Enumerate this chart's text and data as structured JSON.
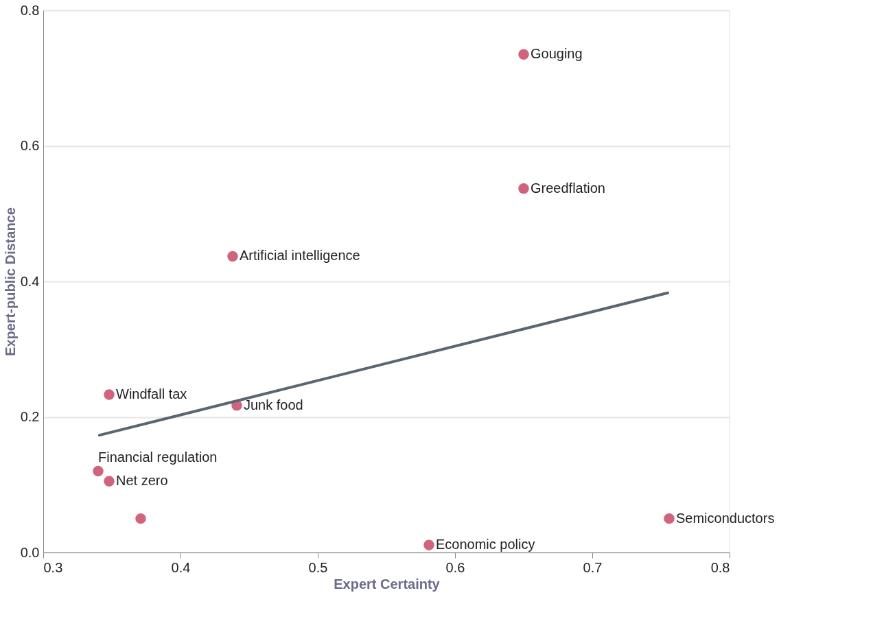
{
  "chart_data": {
    "type": "scatter",
    "xlabel": "Expert Certainty",
    "ylabel": "Expert-public Distance",
    "xlim": [
      0.3,
      0.8
    ],
    "xticks": [
      0.3,
      0.4,
      0.5,
      0.6,
      0.7,
      0.8
    ],
    "ylim": [
      0,
      0.8
    ],
    "yticks": [
      {
        "value": 0,
        "label": "0.0"
      },
      0.2,
      0.4,
      0.6,
      0.8
    ],
    "grid": "y",
    "series": [
      {
        "marker": "circle",
        "color": "#d0647c",
        "x": [
          0.65,
          0.65,
          0.438,
          0.348,
          0.441,
          0.34,
          0.348,
          0.371,
          0.581,
          0.756
        ],
        "values": [
          0.735,
          0.537,
          0.437,
          0.233,
          0.217,
          0.12,
          0.105,
          0.05,
          0.011,
          0.05
        ]
      },
      {
        "type": "line",
        "color": "#5a6670",
        "x": [
          0.341,
          0.755
        ],
        "values": [
          0.173,
          0.383
        ]
      }
    ],
    "annotations": [
      {
        "text": "Gouging",
        "x": 0.65,
        "y": 0.735
      },
      {
        "text": "Greedflation",
        "x": 0.65,
        "y": 0.537
      },
      {
        "text": "Artificial intelligence",
        "x": 0.438,
        "y": 0.437
      },
      {
        "text": "Windfall tax",
        "x": 0.348,
        "y": 0.233
      },
      {
        "text": "Junk food",
        "x": 0.441,
        "y": 0.217
      },
      {
        "text": "Financial regulation",
        "x": 0.34,
        "y": 0.12
      },
      {
        "text": "Net zero",
        "x": 0.348,
        "y": 0.105
      },
      {
        "text": "Economic policy",
        "x": 0.581,
        "y": 0.011
      },
      {
        "text": "Semiconductors",
        "x": 0.756,
        "y": 0.05
      }
    ]
  }
}
